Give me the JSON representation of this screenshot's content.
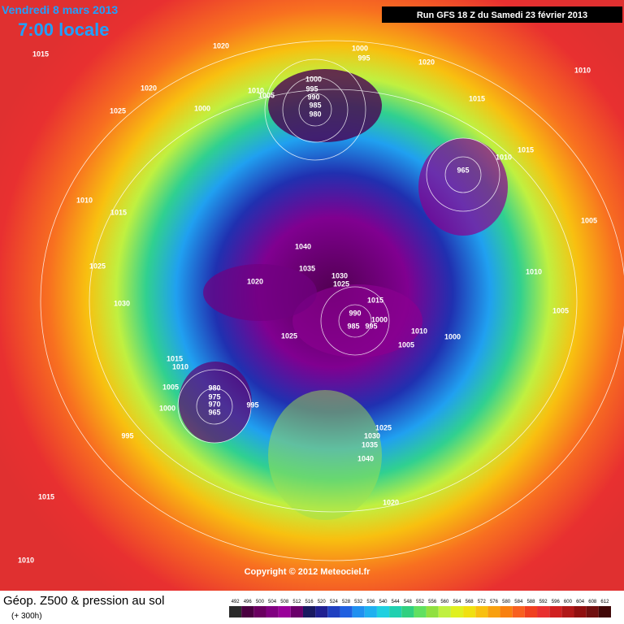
{
  "header": {
    "date": "Vendredi 8 mars 2013",
    "time": "7:00 locale",
    "run": "Run GFS 18 Z du Samedi 23 février 2013"
  },
  "map": {
    "isobar_labels": [
      "1015",
      "1020",
      "1000",
      "995",
      "1020",
      "1010",
      "1020",
      "1010",
      "1005",
      "1000",
      "995",
      "990",
      "985",
      "980",
      "1025",
      "1000",
      "1015",
      "1015",
      "1010",
      "965",
      "1010",
      "1015",
      "1005",
      "1040",
      "1025",
      "1035",
      "1010",
      "1030",
      "1025",
      "1020",
      "1015",
      "1030",
      "1005",
      "990",
      "985",
      "1000",
      "995",
      "1010",
      "1025",
      "1000",
      "1005",
      "1015",
      "1010",
      "1005",
      "980",
      "975",
      "970",
      "965",
      "995",
      "1000",
      "1025",
      "1030",
      "1035",
      "995",
      "1040",
      "1015",
      "1020",
      "1010"
    ],
    "copyright": "Copyright © 2012 Meteociel.fr"
  },
  "footer": {
    "title": "Géop. Z500 & pression au sol",
    "lead": "(+ 300h)"
  },
  "legend": {
    "ticks": [
      492,
      496,
      500,
      504,
      508,
      512,
      516,
      520,
      524,
      528,
      532,
      536,
      540,
      544,
      548,
      552,
      556,
      560,
      564,
      568,
      572,
      576,
      580,
      584,
      588,
      592,
      596,
      600,
      604,
      608,
      612
    ],
    "colors": [
      "#2a2a2a",
      "#4a0040",
      "#6a0060",
      "#800080",
      "#9a009a",
      "#6a006a",
      "#1a1a60",
      "#202090",
      "#2040c0",
      "#2060e0",
      "#2090f0",
      "#20b0f0",
      "#20d0e0",
      "#20d0b0",
      "#30d080",
      "#60e060",
      "#90e040",
      "#c0f040",
      "#e0f020",
      "#f0e010",
      "#f8c010",
      "#f8a010",
      "#f88010",
      "#f86020",
      "#f04020",
      "#e83030",
      "#d02020",
      "#b01818",
      "#901010",
      "#701010",
      "#400808"
    ]
  }
}
